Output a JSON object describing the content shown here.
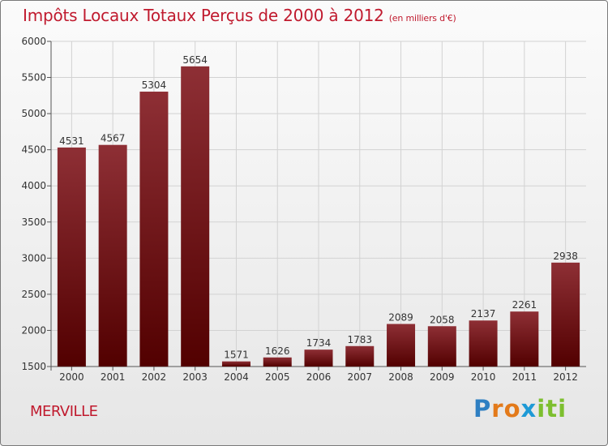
{
  "title": "Impôts Locaux Totaux Perçus de 2000 à 2012",
  "title_unit": "(en milliers d'€)",
  "commune": "MERVILLE",
  "logo": {
    "letters": [
      "P",
      "r",
      "o",
      "x",
      "i",
      "t",
      "i"
    ],
    "colors": [
      "#2e7fc2",
      "#e37a1a",
      "#e37a1a",
      "#1e9ad6",
      "#7dbf2f",
      "#7dbf2f",
      "#7dbf2f"
    ]
  },
  "colors": {
    "title": "#c01a2e",
    "bar_top": "#8e2f35",
    "bar_bottom": "#520000"
  },
  "chart_data": {
    "type": "bar",
    "categories": [
      "2000",
      "2001",
      "2002",
      "2003",
      "2004",
      "2005",
      "2006",
      "2007",
      "2008",
      "2009",
      "2010",
      "2011",
      "2012"
    ],
    "values": [
      4531,
      4567,
      5304,
      5654,
      1571,
      1626,
      1734,
      1783,
      2089,
      2058,
      2137,
      2261,
      2938
    ],
    "ylim": [
      1500,
      6000
    ],
    "yticks": [
      1500,
      2000,
      2500,
      3000,
      3500,
      4000,
      4500,
      5000,
      5500,
      6000
    ],
    "grid": true,
    "data_labels": true
  }
}
